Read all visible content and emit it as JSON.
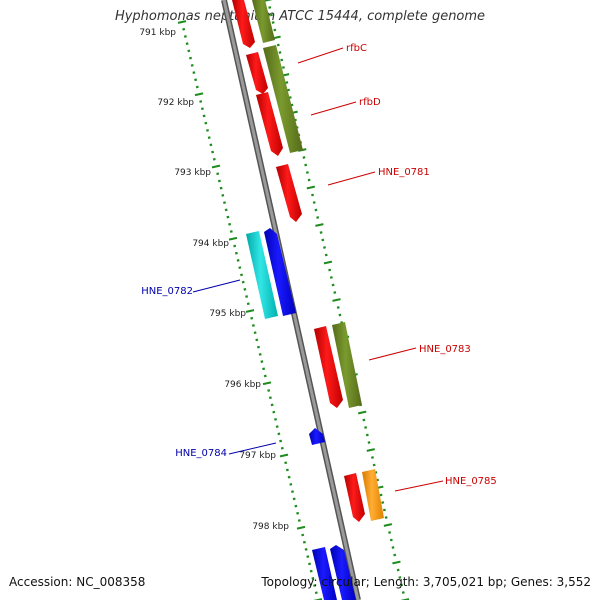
{
  "title": "Hyphomonas neptunium ATCC 15444, complete genome",
  "accession": "Accession: NC_008358",
  "stats": "Topology: circular; Length: 3,705,021 bp; Genes: 3,552",
  "ticks": [
    "791 kbp",
    "792 kbp",
    "793 kbp",
    "794 kbp",
    "795 kbp",
    "796 kbp",
    "797 kbp",
    "798 kbp"
  ],
  "genes": [
    {
      "name": "rfbC",
      "color": "#cc0000"
    },
    {
      "name": "rfbD",
      "color": "#cc0000"
    },
    {
      "name": "HNE_0781",
      "color": "#cc0000"
    },
    {
      "name": "HNE_0782",
      "color": "#0000aa"
    },
    {
      "name": "HNE_0783",
      "color": "#cc0000"
    },
    {
      "name": "HNE_0784",
      "color": "#0000aa"
    },
    {
      "name": "HNE_0785",
      "color": "#cc0000"
    }
  ],
  "colors": {
    "backbone": "#8c8c8c",
    "tick_inner": "#1e8c1e",
    "tick_outer": "#1e8c1e",
    "cds_red": "#ff0000",
    "cds_olive": "#6b8e23",
    "cds_blue": "#0000ff",
    "cds_cyan": "#00cccc",
    "cds_orange": "#ff9900"
  }
}
